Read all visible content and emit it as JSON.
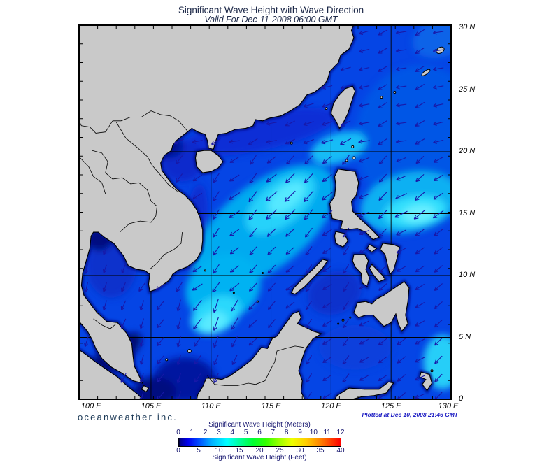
{
  "header": {
    "title": "Significant Wave Height with Wave Direction",
    "subtitle": "Valid For Dec-11-2008 06:00 GMT"
  },
  "map": {
    "lat_labels": [
      "30 N",
      "25 N",
      "20 N",
      "15 N",
      "10 N",
      "5 N",
      "0"
    ],
    "lat_values": [
      30,
      25,
      20,
      15,
      10,
      5,
      0
    ],
    "lon_labels": [
      "100 E",
      "105 E",
      "110 E",
      "115 E",
      "120 E",
      "125 E",
      "130 E"
    ],
    "lon_values": [
      100,
      105,
      110,
      115,
      120,
      125,
      130
    ],
    "colors": {
      "ocean_base": "#0545E5",
      "land": "#C9C9C9",
      "coast_line": "#000000",
      "coastal_shallow": "#000C86",
      "arrow": "#1818A8",
      "grid": "#000000",
      "title_text": "#1B2747",
      "brand_text": "#1D3A57",
      "plotted_text": "#2121C4",
      "legend_text": "#14146E",
      "axis_text": "#000000"
    }
  },
  "footer": {
    "brand": "oceanweather inc.",
    "plotted": "Plotted at Dec 10, 2008 21:46 GMT"
  },
  "legend": {
    "meters_label": "Significant Wave Height (Meters)",
    "feet_label": "Significant Wave Height (Feet)",
    "meters_ticks": [
      "0",
      "1",
      "2",
      "3",
      "4",
      "5",
      "6",
      "7",
      "8",
      "9",
      "10",
      "11",
      "12"
    ],
    "feet_ticks": [
      "0",
      "5",
      "10",
      "15",
      "20",
      "25",
      "30",
      "35",
      "40"
    ],
    "gradient_stops": [
      [
        "#000000",
        0
      ],
      [
        "#000099",
        1.5
      ],
      [
        "#0000EE",
        6
      ],
      [
        "#0044FF",
        12
      ],
      [
        "#00AAFF",
        20
      ],
      [
        "#00FFFF",
        30
      ],
      [
        "#00FF99",
        38
      ],
      [
        "#00FF33",
        46
      ],
      [
        "#33FF00",
        54
      ],
      [
        "#99FF00",
        62
      ],
      [
        "#EEFF00",
        70
      ],
      [
        "#FFCC00",
        79
      ],
      [
        "#FF8800",
        87
      ],
      [
        "#FF3300",
        95
      ],
      [
        "#FF0000",
        100
      ]
    ],
    "scale_note": "0-12 meters / 0-40 feet rainbow scale"
  }
}
